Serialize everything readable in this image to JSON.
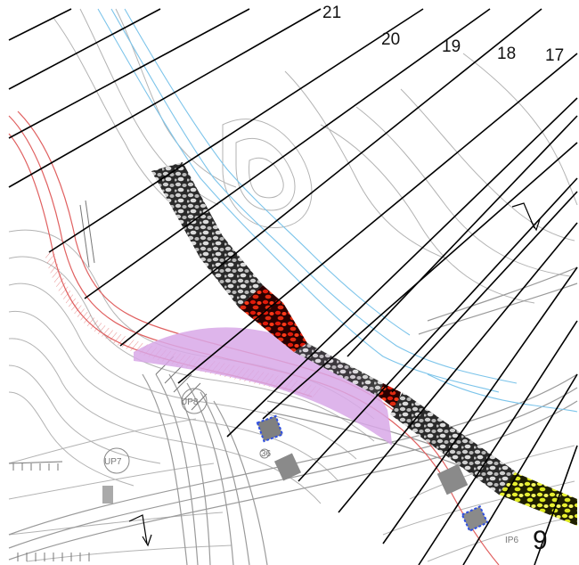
{
  "map": {
    "section_labels": [
      "21",
      "20",
      "19",
      "18",
      "17"
    ],
    "point_labels": {
      "up8": "UP8",
      "up7": "UP7",
      "ip6": "IP6",
      "small": "36"
    },
    "large_label": "9",
    "colors": {
      "section_line": "#000000",
      "contour": "#b0b0b0",
      "stream": "#7cc4ea",
      "road_red": "#e06060",
      "highlight_purple": "#d8a8e8",
      "fill_gray_stones": "#8a8a8a",
      "fill_red": "#d01010",
      "fill_yellow": "#e6f020",
      "building": "#808080",
      "building_outline": "#3050e0"
    }
  }
}
